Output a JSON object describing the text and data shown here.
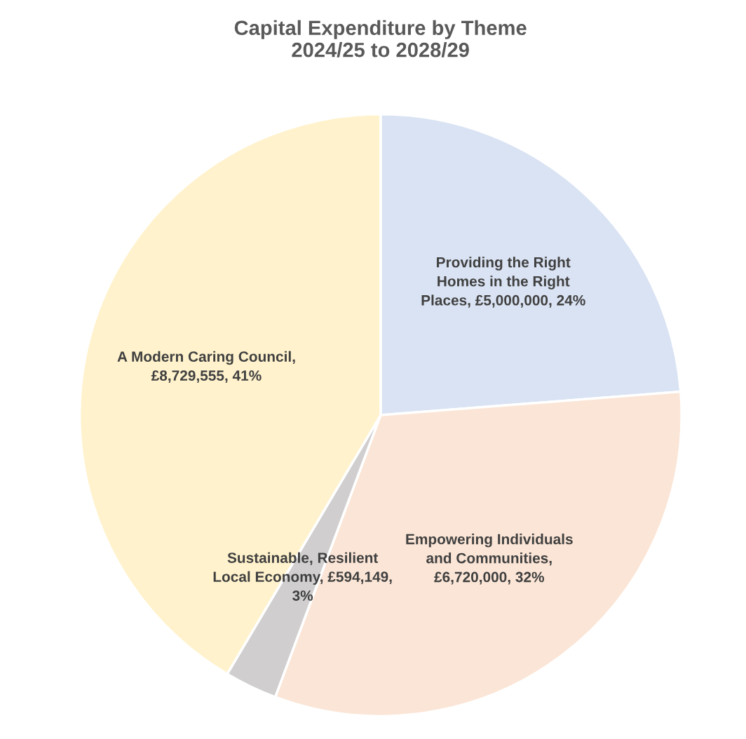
{
  "chart_data": {
    "type": "pie",
    "title": "Capital Expenditure by Theme\n2024/25 to 2028/29",
    "categories": [
      "Providing the Right Homes in the Right Places, £5,000,000, 24%",
      "Empowering Individuals and Communities, £6,720,000, 32%",
      "Sustainable, Resilient Local Economy, £594,149, 3%",
      "A Modern Caring Council, £8,729,555, 41%"
    ],
    "values": [
      5000000,
      6720000,
      594149,
      8729555
    ],
    "colors": [
      "#dae3f3",
      "#fbe5d6",
      "#d0cece",
      "#fff2cc"
    ]
  }
}
